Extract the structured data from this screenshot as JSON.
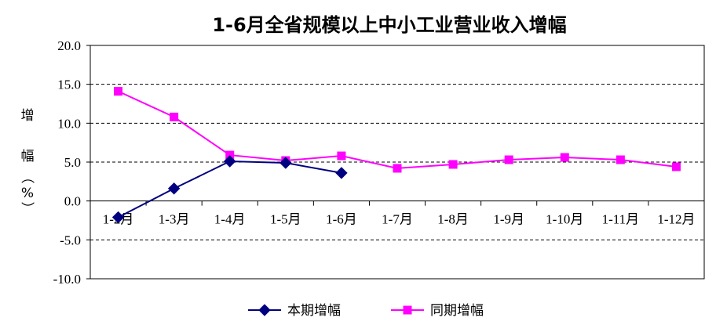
{
  "chart_data": {
    "type": "line",
    "title": "1-6月全省规模以上中小工业营业收入增幅",
    "ylabel": "增幅（%）",
    "ylabel_chars": [
      "增",
      "幅",
      "（",
      "%",
      "）"
    ],
    "categories": [
      "1-2月",
      "1-3月",
      "1-4月",
      "1-5月",
      "1-6月",
      "1-7月",
      "1-8月",
      "1-9月",
      "1-10月",
      "1-11月",
      "1-12月"
    ],
    "ylim": [
      -10,
      20
    ],
    "yticks": [
      -10,
      -5,
      0,
      5,
      10,
      15,
      20
    ],
    "ytick_labels": [
      "-10.0",
      "-5.0",
      "0.0",
      "5.0",
      "10.0",
      "15.0",
      "20.0"
    ],
    "grid": "horizontal dashed",
    "legend_position": "bottom",
    "series": [
      {
        "name": "本期增幅",
        "color": "#000080",
        "marker": "diamond",
        "values": [
          -2.1,
          1.6,
          5.1,
          4.9,
          3.6,
          null,
          null,
          null,
          null,
          null,
          null
        ]
      },
      {
        "name": "同期增幅",
        "color": "#ff00ff",
        "marker": "square",
        "values": [
          14.1,
          10.8,
          5.9,
          5.2,
          5.8,
          4.2,
          4.7,
          5.3,
          5.6,
          5.3,
          4.4
        ]
      }
    ]
  }
}
